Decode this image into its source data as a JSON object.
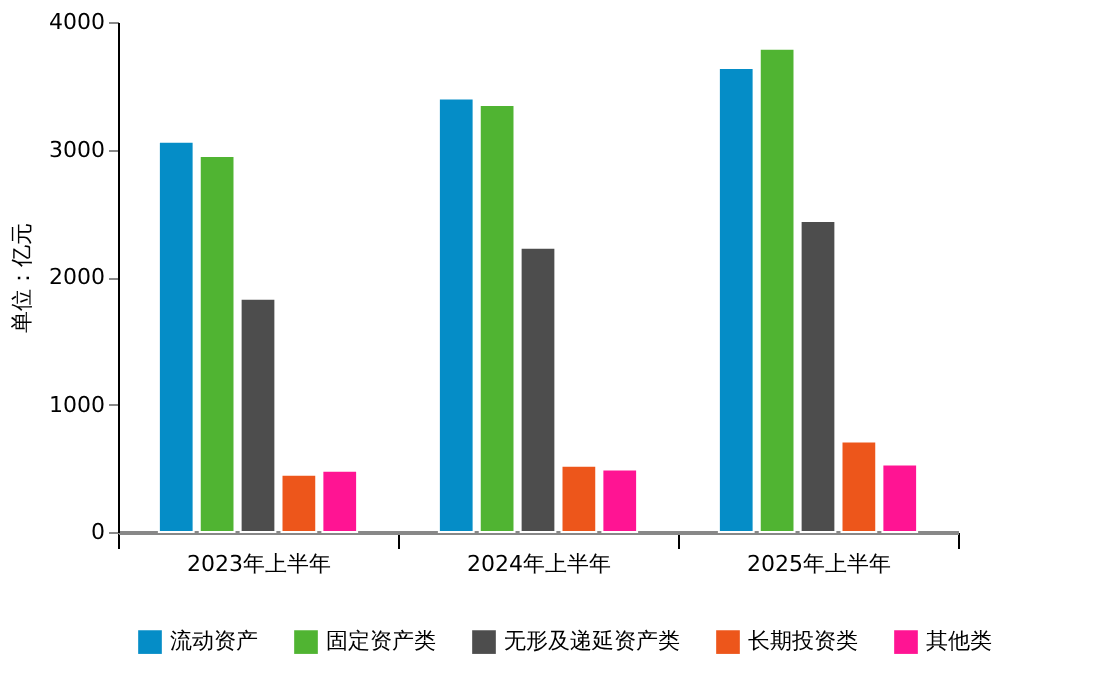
{
  "chart_data": {
    "type": "bar",
    "ylabel": "单位：亿元",
    "categories": [
      "2023年上半年",
      "2024年上半年",
      "2025年上半年"
    ],
    "series": [
      {
        "name": "流动资产",
        "color": "#058dc7",
        "values": [
          3060,
          3400,
          3640
        ]
      },
      {
        "name": "固定资产类",
        "color": "#50b432",
        "values": [
          2950,
          3350,
          3790
        ]
      },
      {
        "name": "无形及递延资产类",
        "color": "#4d4d4d",
        "values": [
          1830,
          2230,
          2440
        ]
      },
      {
        "name": "长期投资类",
        "color": "#ed561b",
        "values": [
          450,
          520,
          710
        ]
      },
      {
        "name": "其他类",
        "color": "#ff1493",
        "values": [
          480,
          490,
          530
        ]
      }
    ],
    "ylim": [
      0,
      4000
    ],
    "yticks": [
      0,
      1000,
      2000,
      3000,
      4000
    ],
    "grid": false,
    "legend": "bottom"
  }
}
